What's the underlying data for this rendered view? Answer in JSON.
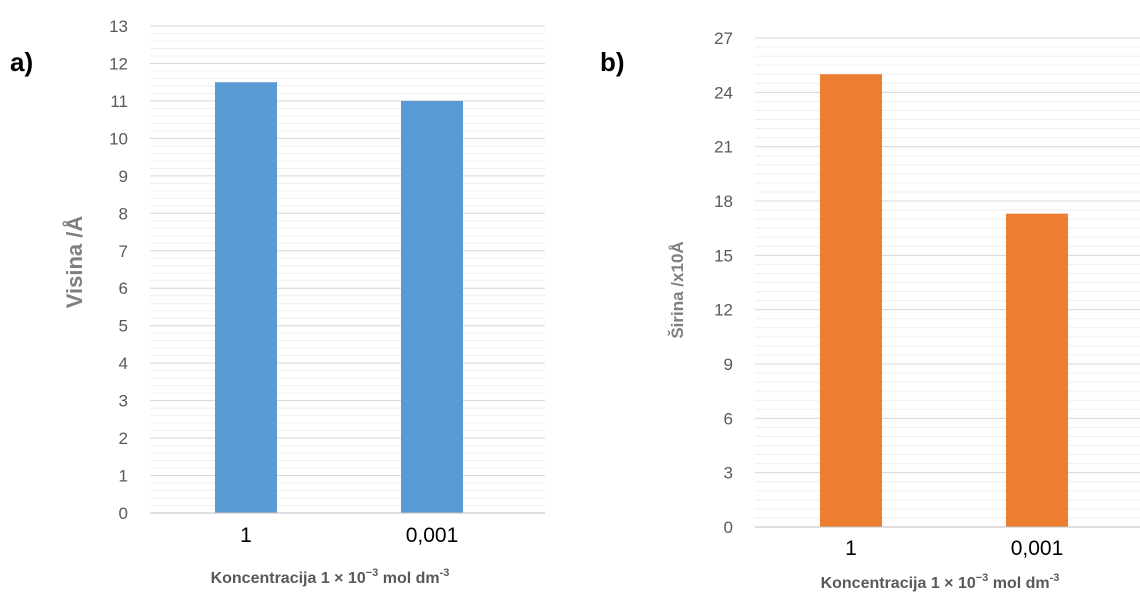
{
  "chart_data": [
    {
      "type": "bar",
      "panel_label": "a)",
      "categories": [
        "1",
        "0,001"
      ],
      "values": [
        11.5,
        11.0
      ],
      "ylabel": "Visina /Å",
      "xlabel": {
        "prefix": "Koncentracija  1 × 10",
        "exponent1": "−3",
        "middle": " mol dm",
        "exponent2": "-3"
      },
      "ylim": [
        0,
        13
      ],
      "yticks": [
        0,
        1,
        2,
        3,
        4,
        5,
        6,
        7,
        8,
        9,
        10,
        11,
        12,
        13
      ],
      "grid": true,
      "color": "#5b9bd5"
    },
    {
      "type": "bar",
      "panel_label": "b)",
      "categories": [
        "1",
        "0,001"
      ],
      "values": [
        25.0,
        17.3
      ],
      "ylabel": "Širina /x10Å",
      "xlabel": {
        "prefix": "Koncentracija  1 × 10",
        "exponent1": "−3",
        "middle": " mol dm",
        "exponent2": "-3"
      },
      "ylim": [
        0,
        27
      ],
      "yticks": [
        0,
        3,
        6,
        9,
        12,
        15,
        18,
        21,
        24,
        27
      ],
      "grid": true,
      "color": "#ed7d31"
    }
  ]
}
